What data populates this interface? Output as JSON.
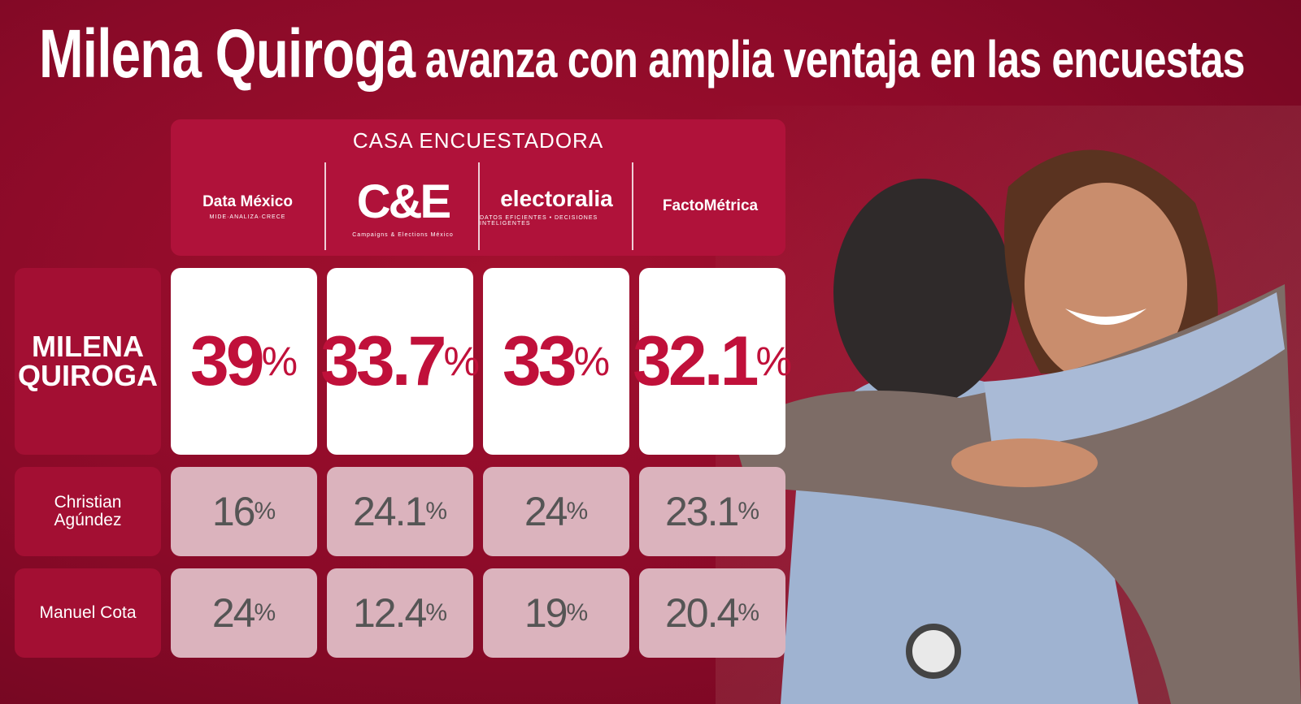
{
  "title": {
    "highlight": "Milena Quiroga",
    "rest": "avanza con amplia ventaja en las encuestas"
  },
  "table": {
    "header": "CASA ENCUESTADORA",
    "unit": "%",
    "pollsters": [
      {
        "name": "Data México",
        "tagline": "MIDE·ANALIZA·CRECE"
      },
      {
        "name": "C&E",
        "tagline": "Campaigns & Elections México"
      },
      {
        "name": "electoralia",
        "tagline": "DATOS EFICIENTES • DECISIONES INTELIGENTES"
      },
      {
        "name": "FactoMétrica"
      }
    ],
    "rows": [
      {
        "candidate": "MILENA QUIROGA",
        "values": [
          39,
          33.7,
          33,
          32.1
        ]
      },
      {
        "candidate": "Christian Agúndez",
        "values": [
          16,
          24.1,
          24,
          23.1
        ]
      },
      {
        "candidate": "Manuel Cota",
        "values": [
          24,
          12.4,
          19,
          20.4
        ]
      }
    ]
  }
}
